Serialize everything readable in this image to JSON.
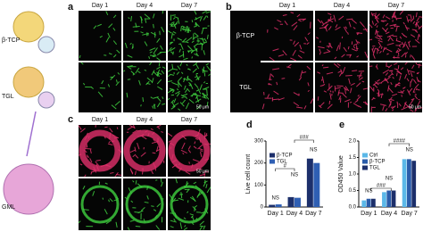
{
  "schematic": {
    "labels": [
      "β-TCP",
      "TGL",
      "GML"
    ]
  },
  "panels": {
    "a": {
      "label": "a",
      "columns": [
        "Day 1",
        "Day 4",
        "Day 7"
      ],
      "scale": "50 μm"
    },
    "b": {
      "label": "b",
      "columns": [
        "Day 1",
        "Day 4",
        "Day 7"
      ],
      "rows": [
        "β-TCP",
        "TGL"
      ],
      "scale": "50 μm"
    },
    "c": {
      "label": "c",
      "columns": [
        "Day 1",
        "Day 4",
        "Day 7"
      ],
      "scale": "50 μm"
    }
  },
  "chart_data": [
    {
      "type": "bar",
      "panel_label": "d",
      "ylabel": "Live cell count",
      "categories": [
        "Day 1",
        "Day 4",
        "Day 7"
      ],
      "series": [
        {
          "name": "β-TCP",
          "color": "#1c2f6b",
          "values": [
            10,
            45,
            220
          ]
        },
        {
          "name": "TGL",
          "color": "#2f5fb3",
          "values": [
            12,
            42,
            200
          ]
        }
      ],
      "ylim": [
        0,
        300
      ],
      "yticks": [
        0,
        100,
        200,
        300
      ],
      "annotations": [
        "NS",
        "NS",
        "NS",
        "#",
        "###"
      ]
    },
    {
      "type": "bar",
      "panel_label": "e",
      "ylabel": "OD450 Value",
      "categories": [
        "Day 1",
        "Day 4",
        "Day 7"
      ],
      "series": [
        {
          "name": "Ctrl",
          "color": "#5bb8e8",
          "values": [
            0.2,
            0.45,
            1.45
          ]
        },
        {
          "name": "β-TCP",
          "color": "#2a5caa",
          "values": [
            0.25,
            0.5,
            1.45
          ]
        },
        {
          "name": "TGL",
          "color": "#1c2f6b",
          "values": [
            0.25,
            0.5,
            1.4
          ]
        }
      ],
      "ylim": [
        0,
        2
      ],
      "yticks": [
        {
          "value": 0,
          "label": "0.0"
        },
        {
          "value": 0.5,
          "label": "0.5"
        },
        {
          "value": 1,
          "label": "1.0"
        },
        {
          "value": 1.5,
          "label": "1.5"
        },
        {
          "value": 2,
          "label": "2.0"
        }
      ],
      "annotations": [
        "NS",
        "NS",
        "NS",
        "###",
        "####"
      ]
    }
  ]
}
